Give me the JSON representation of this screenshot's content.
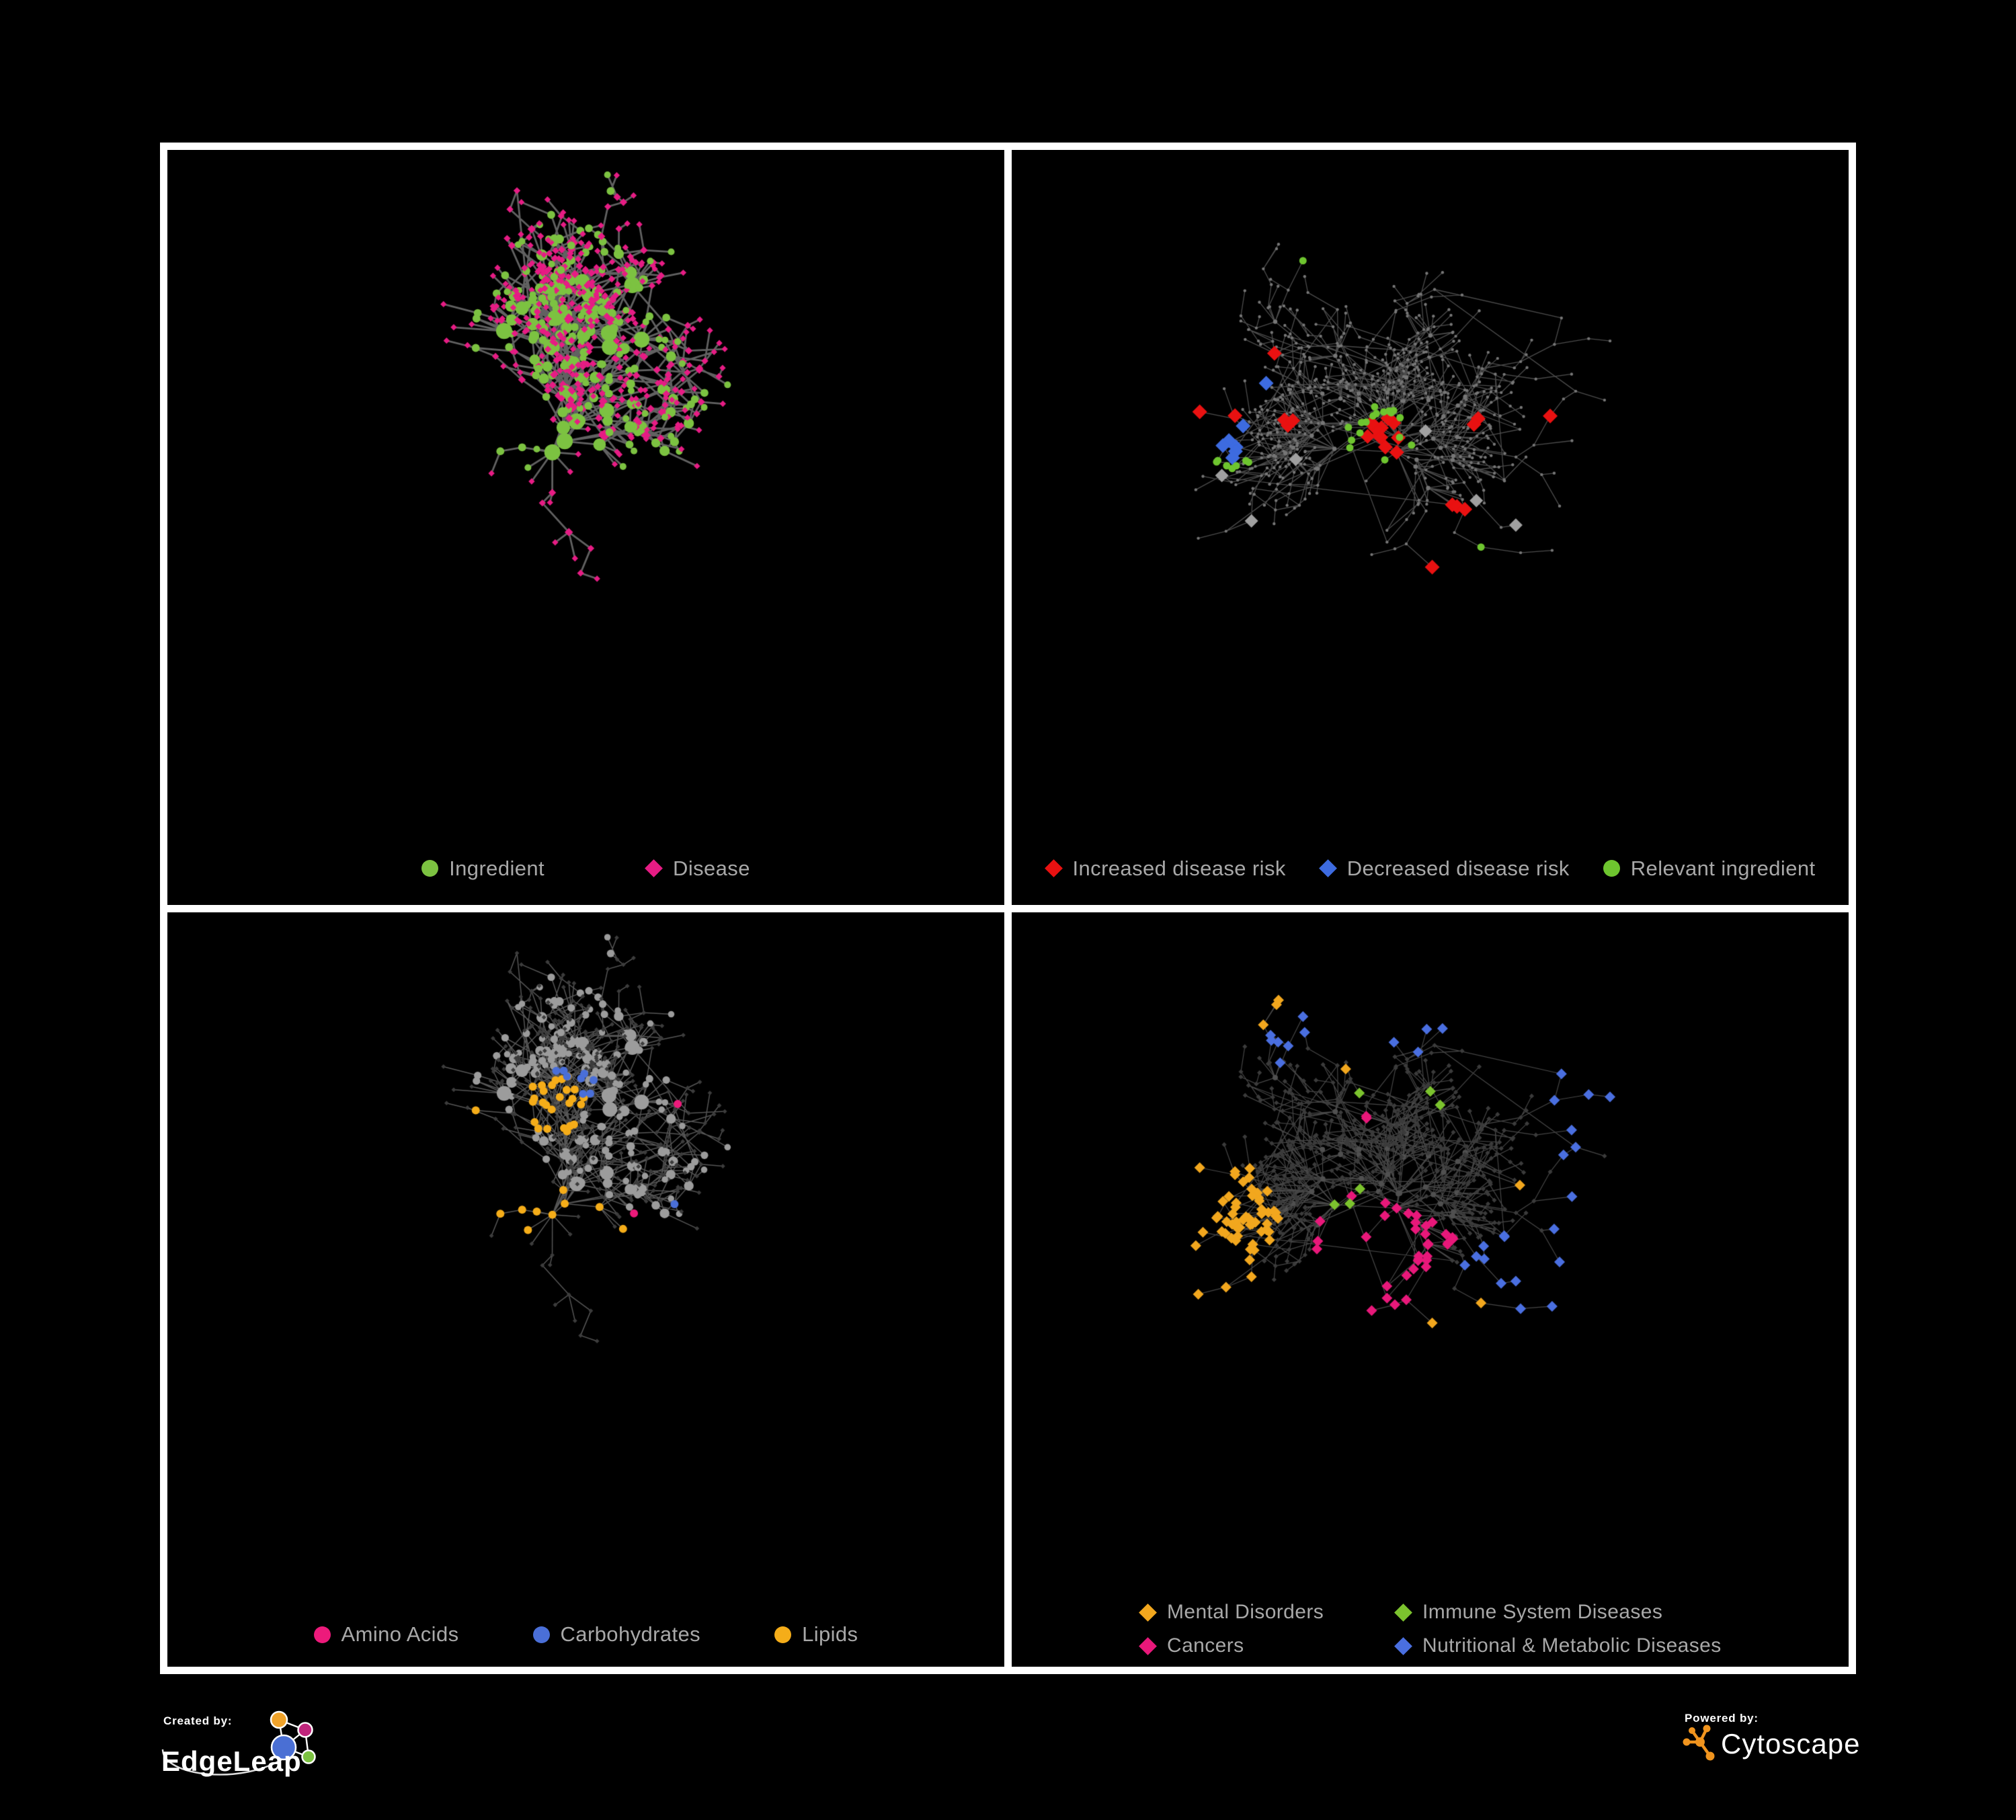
{
  "figure": {
    "background": "#000000",
    "panel_border_color": "#ffffff",
    "legend_text_color": "#a8a8a8"
  },
  "panels": [
    {
      "id": "ingredients-diseases",
      "legend": [
        {
          "label": "Ingredient",
          "shape": "circle",
          "color": "#7cc241"
        },
        {
          "label": "Disease",
          "shape": "diamond",
          "color": "#e61c84"
        }
      ],
      "network": {
        "mode": "two",
        "seed": 7,
        "node_count": 680,
        "spread": 1.0,
        "cross_link_ratio": 0.045,
        "edge": {
          "color": "#6b6b6b",
          "width": 2.8,
          "alpha": 0.9
        },
        "base": {
          "ingredient_color": "#7cc241",
          "disease_color": "#e61c84"
        },
        "highlights": []
      }
    },
    {
      "id": "disease-risk",
      "legend": [
        {
          "label": "Increased disease risk",
          "shape": "diamond",
          "color": "#e91111"
        },
        {
          "label": "Decreased disease risk",
          "shape": "diamond",
          "color": "#3d6be0"
        },
        {
          "label": "Relevant ingredient",
          "shape": "circle",
          "color": "#6ec52f"
        }
      ],
      "network": {
        "mode": "risk",
        "seed": 13,
        "node_count": 720,
        "spread": 1.05,
        "cross_link_ratio": 0.05,
        "edge": {
          "color": "#595959",
          "width": 1.3,
          "alpha": 0.85
        },
        "base": {
          "color": "#767676"
        },
        "highlights": [
          {
            "shape": "diamond",
            "color": "#e91111",
            "size": 8,
            "clusters": [
              [
                0.44,
                0.42,
                0.1,
                12
              ],
              [
                0.33,
                0.4,
                0.05,
                3
              ],
              [
                0.56,
                0.4,
                0.04,
                2
              ],
              [
                0.52,
                0.52,
                0.05,
                3
              ],
              [
                0.63,
                0.38,
                0.03,
                1
              ],
              [
                0.6,
                0.66,
                0.03,
                1
              ],
              [
                0.65,
                0.72,
                0.03,
                1
              ],
              [
                0.24,
                0.4,
                0.04,
                2
              ],
              [
                0.48,
                0.6,
                0.03,
                1
              ],
              [
                0.31,
                0.3,
                0.03,
                1
              ],
              [
                0.74,
                0.68,
                0.03,
                1
              ]
            ]
          },
          {
            "shape": "diamond",
            "color": "#3d6be0",
            "size": 8,
            "clusters": [
              [
                0.26,
                0.42,
                0.06,
                6
              ],
              [
                0.83,
                0.32,
                0.035,
                2
              ],
              [
                0.3,
                0.33,
                0.02,
                1
              ]
            ]
          },
          {
            "shape": "diamond",
            "color": "#a0a0a0",
            "size": 7,
            "clusters": [
              [
                0.21,
                0.38,
                0.03,
                1
              ],
              [
                0.24,
                0.47,
                0.03,
                1
              ],
              [
                0.34,
                0.45,
                0.03,
                1
              ],
              [
                0.5,
                0.4,
                0.03,
                1
              ],
              [
                0.55,
                0.5,
                0.03,
                1
              ],
              [
                0.6,
                0.55,
                0.03,
                1
              ],
              [
                0.28,
                0.58,
                0.03,
                1
              ]
            ]
          },
          {
            "shape": "circle",
            "color": "#6ec52f",
            "size": 5.5,
            "clusters": [
              [
                0.44,
                0.42,
                0.12,
                18
              ],
              [
                0.26,
                0.43,
                0.08,
                7
              ],
              [
                0.13,
                0.49,
                0.02,
                1
              ],
              [
                0.3,
                0.64,
                0.02,
                1
              ],
              [
                0.52,
                0.62,
                0.02,
                1
              ],
              [
                0.68,
                0.73,
                0.03,
                3
              ],
              [
                0.79,
                0.36,
                0.02,
                1
              ],
              [
                0.35,
                0.15,
                0.02,
                1
              ],
              [
                0.57,
                0.57,
                0.02,
                1
              ]
            ]
          }
        ]
      }
    },
    {
      "id": "macronutrient-classes",
      "legend": [
        {
          "label": "Amino Acids",
          "shape": "circle",
          "color": "#ed1a7b"
        },
        {
          "label": "Carbohydrates",
          "shape": "circle",
          "color": "#4a6fd8"
        },
        {
          "label": "Lipids",
          "shape": "circle",
          "color": "#f5ad19"
        }
      ],
      "network": {
        "mode": "three",
        "seed": 7,
        "node_count": 680,
        "spread": 1.0,
        "cross_link_ratio": 0.045,
        "edge": {
          "color": "#656565",
          "width": 1.5,
          "alpha": 0.85
        },
        "base": {
          "ingredient_color": "#9c9c9c",
          "disease_color": "#3c3c3c"
        },
        "highlights": [
          {
            "shape": "circle",
            "color": "#f5ad19",
            "size": 6,
            "on": "circle",
            "clusters": [
              [
                0.46,
                0.28,
                0.1,
                26
              ],
              [
                0.31,
                0.47,
                0.09,
                16
              ],
              [
                0.56,
                0.63,
                0.05,
                8
              ],
              [
                0.68,
                0.18,
                0.04,
                3
              ],
              [
                0.25,
                0.12,
                0.05,
                4
              ],
              [
                0.75,
                0.62,
                0.04,
                3
              ],
              [
                0.18,
                0.62,
                0.03,
                2
              ],
              [
                0.4,
                0.88,
                0.03,
                2
              ],
              [
                0.85,
                0.45,
                0.03,
                2
              ],
              [
                0.5,
                0.45,
                0.05,
                4
              ]
            ]
          },
          {
            "shape": "circle",
            "color": "#4a6fd8",
            "size": 6,
            "on": "circle",
            "clusters": [
              [
                0.48,
                0.26,
                0.07,
                8
              ],
              [
                0.13,
                0.27,
                0.02,
                1
              ],
              [
                0.52,
                0.74,
                0.02,
                1
              ],
              [
                0.88,
                0.72,
                0.02,
                1
              ],
              [
                0.6,
                0.43,
                0.02,
                1
              ]
            ]
          },
          {
            "shape": "circle",
            "color": "#ed1a7b",
            "size": 6,
            "on": "circle",
            "clusters": [
              [
                0.05,
                0.6,
                0.04,
                1
              ],
              [
                0.14,
                0.52,
                0.04,
                1
              ],
              [
                0.3,
                0.77,
                0.04,
                1
              ],
              [
                0.38,
                0.7,
                0.04,
                1
              ],
              [
                0.48,
                0.84,
                0.04,
                1
              ],
              [
                0.57,
                0.57,
                0.04,
                1
              ],
              [
                0.62,
                0.7,
                0.04,
                1
              ],
              [
                0.76,
                0.3,
                0.04,
                1
              ],
              [
                0.67,
                0.26,
                0.04,
                1
              ],
              [
                0.9,
                0.27,
                0.04,
                1
              ],
              [
                0.37,
                0.05,
                0.04,
                1
              ],
              [
                0.21,
                0.25,
                0.04,
                1
              ],
              [
                0.52,
                0.5,
                0.04,
                1
              ],
              [
                0.08,
                0.38,
                0.04,
                1
              ],
              [
                0.44,
                0.63,
                0.04,
                1
              ],
              [
                0.83,
                0.2,
                0.04,
                1
              ]
            ]
          }
        ]
      }
    },
    {
      "id": "disease-categories",
      "legend": [
        {
          "label": "Mental Disorders",
          "shape": "diamond",
          "color": "#f2a71e"
        },
        {
          "label": "Immune System Diseases",
          "shape": "diamond",
          "color": "#7cc32e"
        },
        {
          "label": "Cancers",
          "shape": "diamond",
          "color": "#e8187a"
        },
        {
          "label": "Nutritional & Metabolic Diseases",
          "shape": "diamond",
          "color": "#4a6fe0"
        }
      ],
      "network": {
        "mode": "categories",
        "seed": 13,
        "node_count": 720,
        "spread": 1.05,
        "cross_link_ratio": 0.05,
        "edge": {
          "color": "#595959",
          "width": 1.2,
          "alpha": 0.8
        },
        "base": {
          "color": "#3b3b3b",
          "hub_color": "#505050"
        },
        "highlights": [
          {
            "shape": "diamond",
            "color": "#f2a71e",
            "size": 5,
            "clusters": [
              [
                0.22,
                0.47,
                0.12,
                58
              ],
              [
                0.28,
                0.12,
                0.04,
                3
              ],
              [
                0.4,
                0.24,
                0.03,
                1
              ],
              [
                0.62,
                0.41,
                0.03,
                1
              ],
              [
                0.15,
                0.7,
                0.03,
                2
              ],
              [
                0.54,
                0.61,
                0.03,
                1
              ],
              [
                0.67,
                0.78,
                0.03,
                1
              ],
              [
                0.48,
                0.66,
                0.03,
                1
              ],
              [
                0.13,
                0.31,
                0.03,
                1
              ]
            ]
          },
          {
            "shape": "diamond",
            "color": "#e8187a",
            "size": 5,
            "clusters": [
              [
                0.44,
                0.52,
                0.09,
                30
              ],
              [
                0.52,
                0.48,
                0.05,
                5
              ],
              [
                0.88,
                0.27,
                0.05,
                5
              ],
              [
                0.5,
                0.81,
                0.05,
                5
              ],
              [
                0.25,
                0.63,
                0.03,
                2
              ],
              [
                0.26,
                0.12,
                0.02,
                1
              ],
              [
                0.76,
                0.62,
                0.02,
                1
              ],
              [
                0.42,
                0.3,
                0.03,
                2
              ]
            ]
          },
          {
            "shape": "diamond",
            "color": "#4a6fe0",
            "size": 5,
            "clusters": [
              [
                0.61,
                0.56,
                0.06,
                11
              ],
              [
                0.78,
                0.22,
                0.08,
                9
              ],
              [
                0.33,
                0.08,
                0.08,
                7
              ],
              [
                0.49,
                0.1,
                0.05,
                4
              ],
              [
                0.9,
                0.18,
                0.05,
                3
              ],
              [
                0.55,
                0.82,
                0.06,
                4
              ],
              [
                0.15,
                0.14,
                0.05,
                4
              ],
              [
                0.3,
                0.8,
                0.04,
                2
              ],
              [
                0.17,
                0.84,
                0.03,
                2
              ],
              [
                0.71,
                0.47,
                0.04,
                3
              ],
              [
                0.68,
                0.33,
                0.04,
                3
              ],
              [
                0.36,
                0.66,
                0.03,
                2
              ],
              [
                0.82,
                0.5,
                0.03,
                2
              ],
              [
                0.6,
                0.13,
                0.03,
                2
              ]
            ]
          },
          {
            "shape": "diamond",
            "color": "#7cc32e",
            "size": 5,
            "clusters": [
              [
                0.4,
                0.44,
                0.05,
                3
              ],
              [
                0.51,
                0.27,
                0.04,
                2
              ],
              [
                0.35,
                0.62,
                0.03,
                1
              ],
              [
                0.3,
                0.95,
                0.02,
                1
              ],
              [
                0.58,
                0.55,
                0.02,
                1
              ],
              [
                0.41,
                0.26,
                0.02,
                1
              ],
              [
                0.25,
                0.72,
                0.02,
                1
              ],
              [
                0.5,
                0.85,
                0.02,
                1
              ]
            ]
          }
        ]
      }
    }
  ],
  "footer": {
    "created_by_label": "Created by:",
    "created_by_brand": "EdgeLeap",
    "powered_by_label": "Powered by:",
    "powered_by_brand": "Cytoscape",
    "edgeleap": {
      "node_colors": [
        "#f0a32a",
        "#c0257c",
        "#4a6fd4",
        "#7cc241"
      ],
      "line_color": "#ffffff",
      "swoosh_color": "#dddddd"
    },
    "cytoscape": {
      "glyph_color": "#f0941e"
    }
  }
}
